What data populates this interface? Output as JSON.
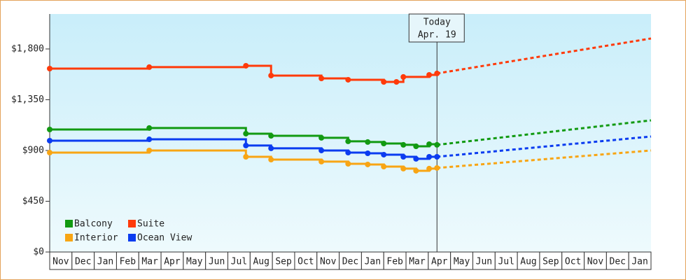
{
  "chart_data": {
    "type": "line",
    "step": "post",
    "xlim": [
      0,
      27
    ],
    "ylim": [
      0,
      2110
    ],
    "yticks": [
      {
        "value": 0,
        "label": "$0"
      },
      {
        "value": 450,
        "label": "$450"
      },
      {
        "value": 900,
        "label": "$900"
      },
      {
        "value": 1350,
        "label": "$1,350"
      },
      {
        "value": 1800,
        "label": "$1,800"
      }
    ],
    "xticks": [
      {
        "value": 0.5,
        "label": "Nov"
      },
      {
        "value": 1.5,
        "label": "Dec"
      },
      {
        "value": 2.5,
        "label": "Jan"
      },
      {
        "value": 3.5,
        "label": "Feb"
      },
      {
        "value": 4.5,
        "label": "Mar"
      },
      {
        "value": 5.5,
        "label": "Apr"
      },
      {
        "value": 6.5,
        "label": "May"
      },
      {
        "value": 7.5,
        "label": "Jun"
      },
      {
        "value": 8.5,
        "label": "Jul"
      },
      {
        "value": 9.5,
        "label": "Aug"
      },
      {
        "value": 10.5,
        "label": "Sep"
      },
      {
        "value": 11.5,
        "label": "Oct"
      },
      {
        "value": 12.5,
        "label": "Nov"
      },
      {
        "value": 13.5,
        "label": "Dec"
      },
      {
        "value": 14.5,
        "label": "Jan"
      },
      {
        "value": 15.5,
        "label": "Feb"
      },
      {
        "value": 16.5,
        "label": "Mar"
      },
      {
        "value": 17.5,
        "label": "Apr"
      },
      {
        "value": 18.5,
        "label": "May"
      },
      {
        "value": 19.5,
        "label": "Jun"
      },
      {
        "value": 20.5,
        "label": "Jul"
      },
      {
        "value": 21.5,
        "label": "Aug"
      },
      {
        "value": 22.5,
        "label": "Sep"
      },
      {
        "value": 23.5,
        "label": "Oct"
      },
      {
        "value": 24.5,
        "label": "Nov"
      },
      {
        "value": 25.5,
        "label": "Dec"
      },
      {
        "value": 26.5,
        "label": "Jan"
      }
    ],
    "today": {
      "x": 17.39,
      "label": [
        "Today",
        "Apr. 19"
      ]
    },
    "legend": "lower left",
    "series": [
      {
        "name": "Balcony",
        "color": "#129a12",
        "x": [
          0,
          4.47,
          8.81,
          9.94,
          12.2,
          13.4,
          14.28,
          15.0,
          15.88,
          16.45,
          17.04,
          17.39
        ],
        "values": [
          1086,
          1099,
          1049,
          1030,
          1012,
          981,
          975,
          962,
          950,
          937,
          956,
          950
        ],
        "forecast_x": [
          17.39,
          27
        ],
        "forecast_values": [
          950,
          1167
        ]
      },
      {
        "name": "Suite",
        "color": "#ff3a0a",
        "x": [
          0,
          4.47,
          8.81,
          9.94,
          12.2,
          13.4,
          15.0,
          15.57,
          15.88,
          17.04,
          17.39
        ],
        "values": [
          1626,
          1639,
          1651,
          1564,
          1539,
          1527,
          1508,
          1508,
          1552,
          1570,
          1583
        ],
        "forecast_x": [
          17.39,
          27
        ],
        "forecast_values": [
          1583,
          1893
        ]
      },
      {
        "name": "Interior",
        "color": "#f8a514",
        "x": [
          0,
          4.47,
          8.81,
          9.94,
          12.2,
          13.4,
          14.28,
          15.0,
          15.88,
          16.45,
          17.04,
          17.39
        ],
        "values": [
          881,
          900,
          844,
          819,
          801,
          782,
          776,
          757,
          739,
          720,
          739,
          745
        ],
        "forecast_x": [
          17.39,
          27
        ],
        "forecast_values": [
          745,
          900
        ]
      },
      {
        "name": "Ocean View",
        "color": "#0b3cf0",
        "x": [
          0,
          4.47,
          8.81,
          9.94,
          12.2,
          13.4,
          14.28,
          15.0,
          15.88,
          16.45,
          17.04,
          17.39
        ],
        "values": [
          987,
          999,
          944,
          919,
          900,
          881,
          875,
          863,
          844,
          826,
          844,
          844
        ],
        "forecast_x": [
          17.39,
          27
        ],
        "forecast_values": [
          844,
          1024
        ]
      }
    ]
  }
}
